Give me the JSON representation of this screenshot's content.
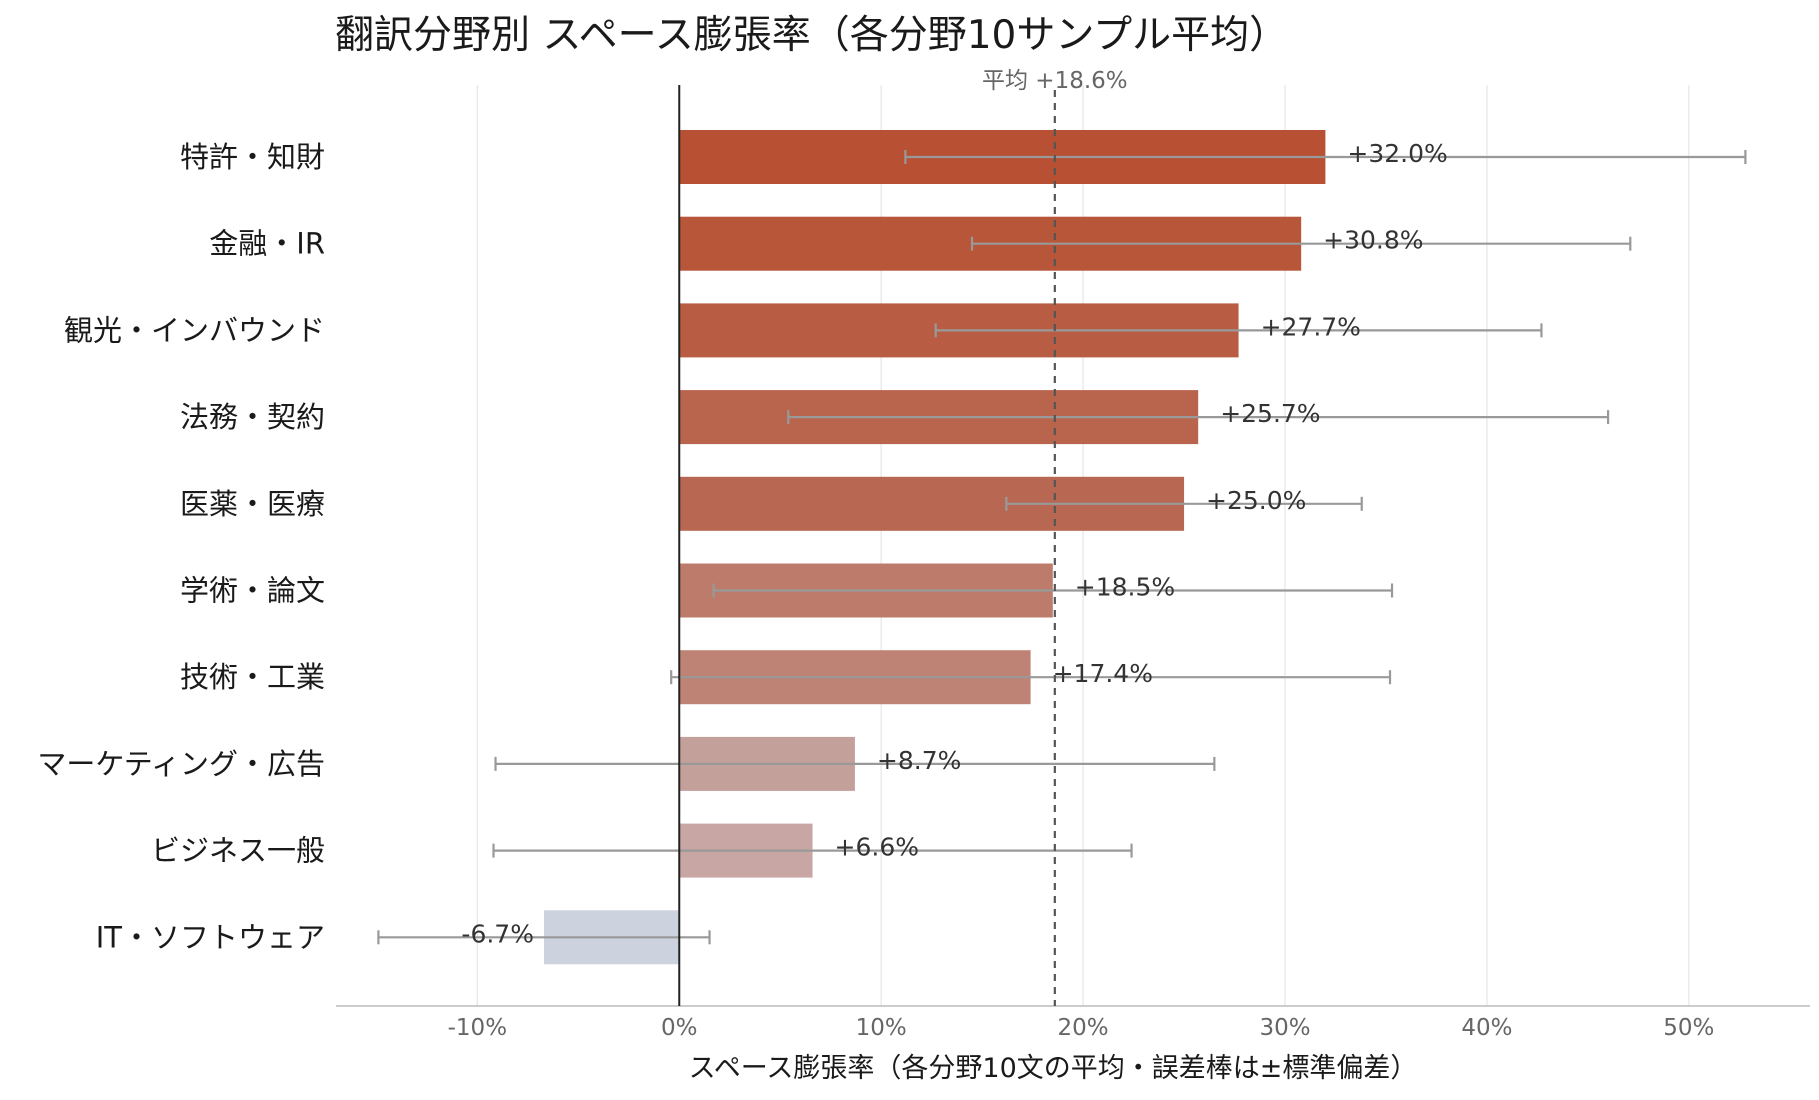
{
  "chart_data": {
    "type": "bar",
    "orientation": "horizontal",
    "title": "翻訳分野別 スペース膨張率（各分野10サンプル平均）",
    "xlabel": "スペース膨張率（各分野10文の平均・誤差棒は±標準偏差）",
    "ylabel": "",
    "xlim": [
      -17,
      56
    ],
    "xticks": [
      -10,
      0,
      10,
      20,
      30,
      40,
      50
    ],
    "xtick_labels": [
      "-10%",
      "0%",
      "10%",
      "20%",
      "30%",
      "40%",
      "50%"
    ],
    "grid": "vertical",
    "mean": {
      "value": 18.6,
      "label": "平均 +18.6%"
    },
    "categories": [
      "特許・知財",
      "金融・IR",
      "観光・インバウンド",
      "法務・契約",
      "医薬・医療",
      "学術・論文",
      "技術・工業",
      "マーケティング・広告",
      "ビジネス一般",
      "IT・ソフトウェア"
    ],
    "values": [
      32.0,
      30.8,
      27.7,
      25.7,
      25.0,
      18.5,
      17.4,
      8.7,
      6.6,
      -6.7
    ],
    "value_labels": [
      "+32.0%",
      "+30.8%",
      "+27.7%",
      "+25.7%",
      "+25.0%",
      "+18.5%",
      "+17.4%",
      "+8.7%",
      "+6.6%",
      "-6.7%"
    ],
    "error_low": [
      11.2,
      14.5,
      12.7,
      5.4,
      16.2,
      1.7,
      -0.4,
      -9.1,
      -9.2,
      -14.9
    ],
    "error_high": [
      52.8,
      47.1,
      42.7,
      46.0,
      33.8,
      35.3,
      35.2,
      26.5,
      22.4,
      1.5
    ],
    "colors": [
      "#b85033",
      "#b75639",
      "#b85d43",
      "#b9644d",
      "#b86753",
      "#bd7b6c",
      "#be8375",
      "#c4a09b",
      "#c7a6a3",
      "#ccd2de"
    ]
  }
}
